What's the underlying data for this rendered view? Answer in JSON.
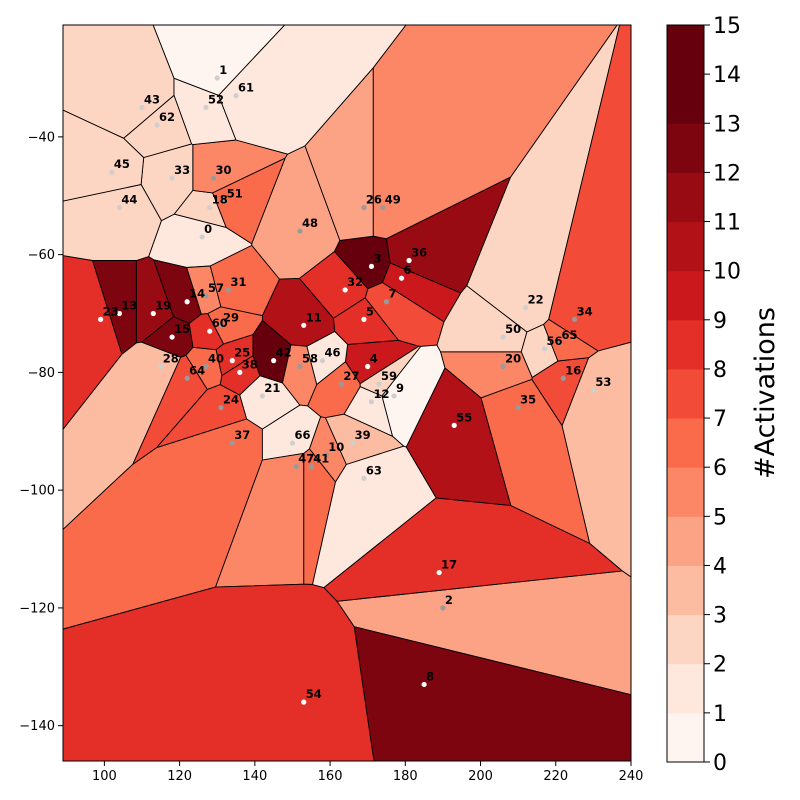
{
  "chart_data": {
    "type": "voronoi",
    "title": "",
    "xlabel": "",
    "ylabel": "",
    "xlim": [
      89,
      240
    ],
    "ylim": [
      -146,
      -21
    ],
    "xticks": [
      "100",
      "120",
      "140",
      "160",
      "180",
      "200",
      "220",
      "240"
    ],
    "yticks": [
      "−40",
      "−60",
      "−80",
      "−100",
      "−120",
      "−140"
    ],
    "colorbar": {
      "label": "#Activations",
      "min": 0,
      "max": 15,
      "ticks": [
        "0",
        "1",
        "2",
        "3",
        "4",
        "5",
        "6",
        "7",
        "8",
        "9",
        "10",
        "11",
        "12",
        "13",
        "14",
        "15"
      ],
      "cmap": "Reds"
    },
    "cells": [
      {
        "id": "0",
        "x": 126,
        "y": -57,
        "value": 1
      },
      {
        "id": "1",
        "x": 130,
        "y": -30,
        "value": 0
      },
      {
        "id": "2",
        "x": 190,
        "y": -120,
        "value": 4
      },
      {
        "id": "3",
        "x": 171,
        "y": -62,
        "value": 14
      },
      {
        "id": "4",
        "x": 170,
        "y": -79,
        "value": 9
      },
      {
        "id": "5",
        "x": 169,
        "y": -71,
        "value": 8
      },
      {
        "id": "6",
        "x": 179,
        "y": -64,
        "value": 9
      },
      {
        "id": "7",
        "x": 175,
        "y": -68,
        "value": 7
      },
      {
        "id": "8",
        "x": 185,
        "y": -133,
        "value": 12
      },
      {
        "id": "9",
        "x": 177,
        "y": -84,
        "value": 0
      },
      {
        "id": "10",
        "x": 159,
        "y": -94,
        "value": 5
      },
      {
        "id": "11",
        "x": 153,
        "y": -72,
        "value": 10
      },
      {
        "id": "12",
        "x": 171,
        "y": -85,
        "value": 1
      },
      {
        "id": "13",
        "x": 104,
        "y": -70,
        "value": 12
      },
      {
        "id": "14",
        "x": 122,
        "y": -68,
        "value": 12
      },
      {
        "id": "15",
        "x": 118,
        "y": -74,
        "value": 12
      },
      {
        "id": "16",
        "x": 222,
        "y": -81,
        "value": 7
      },
      {
        "id": "17",
        "x": 189,
        "y": -114,
        "value": 8
      },
      {
        "id": "18",
        "x": 128,
        "y": -52,
        "value": 2
      },
      {
        "id": "19",
        "x": 113,
        "y": -70,
        "value": 11
      },
      {
        "id": "20",
        "x": 206,
        "y": -79,
        "value": 5
      },
      {
        "id": "21",
        "x": 142,
        "y": -84,
        "value": 1
      },
      {
        "id": "22",
        "x": 212,
        "y": -69,
        "value": 2
      },
      {
        "id": "23",
        "x": 99,
        "y": -71,
        "value": 8
      },
      {
        "id": "24",
        "x": 131,
        "y": -86,
        "value": 7
      },
      {
        "id": "25",
        "x": 134,
        "y": -78,
        "value": 8
      },
      {
        "id": "26",
        "x": 169,
        "y": -52,
        "value": 4
      },
      {
        "id": "27",
        "x": 163,
        "y": -82,
        "value": 6
      },
      {
        "id": "28",
        "x": 115,
        "y": -79,
        "value": 3
      },
      {
        "id": "29",
        "x": 131,
        "y": -72,
        "value": 6
      },
      {
        "id": "30",
        "x": 129,
        "y": -47,
        "value": 5
      },
      {
        "id": "31",
        "x": 133,
        "y": -66,
        "value": 6
      },
      {
        "id": "32",
        "x": 164,
        "y": -66,
        "value": 8
      },
      {
        "id": "33",
        "x": 118,
        "y": -47,
        "value": 2
      },
      {
        "id": "34",
        "x": 225,
        "y": -71,
        "value": 7
      },
      {
        "id": "35",
        "x": 210,
        "y": -86,
        "value": 6
      },
      {
        "id": "36",
        "x": 181,
        "y": -61,
        "value": 11
      },
      {
        "id": "37",
        "x": 134,
        "y": -92,
        "value": 6
      },
      {
        "id": "38",
        "x": 136,
        "y": -80,
        "value": 8
      },
      {
        "id": "39",
        "x": 166,
        "y": -92,
        "value": 3
      },
      {
        "id": "40",
        "x": 127,
        "y": -79,
        "value": 6
      },
      {
        "id": "41",
        "x": 155,
        "y": -96,
        "value": 6
      },
      {
        "id": "42",
        "x": 145,
        "y": -78,
        "value": 14
      },
      {
        "id": "43",
        "x": 110,
        "y": -35,
        "value": 2
      },
      {
        "id": "44",
        "x": 104,
        "y": -52,
        "value": 2
      },
      {
        "id": "45",
        "x": 102,
        "y": -46,
        "value": 2
      },
      {
        "id": "46",
        "x": 158,
        "y": -78,
        "value": 1
      },
      {
        "id": "47",
        "x": 151,
        "y": -96,
        "value": 5
      },
      {
        "id": "48",
        "x": 152,
        "y": -56,
        "value": 4
      },
      {
        "id": "49",
        "x": 174,
        "y": -52,
        "value": 5
      },
      {
        "id": "50",
        "x": 206,
        "y": -74,
        "value": 2
      },
      {
        "id": "51",
        "x": 132,
        "y": -51,
        "value": 6
      },
      {
        "id": "52",
        "x": 127,
        "y": -35,
        "value": 1
      },
      {
        "id": "53",
        "x": 230,
        "y": -83,
        "value": 3
      },
      {
        "id": "54",
        "x": 153,
        "y": -136,
        "value": 8
      },
      {
        "id": "55",
        "x": 193,
        "y": -89,
        "value": 10
      },
      {
        "id": "56",
        "x": 217,
        "y": -76,
        "value": 2
      },
      {
        "id": "57",
        "x": 127,
        "y": -67,
        "value": 5
      },
      {
        "id": "58",
        "x": 152,
        "y": -79,
        "value": 5
      },
      {
        "id": "59",
        "x": 173,
        "y": -82,
        "value": 2
      },
      {
        "id": "60",
        "x": 128,
        "y": -73,
        "value": 8
      },
      {
        "id": "61",
        "x": 135,
        "y": -33,
        "value": 1
      },
      {
        "id": "62",
        "x": 114,
        "y": -38,
        "value": 2
      },
      {
        "id": "63",
        "x": 169,
        "y": -98,
        "value": 1
      },
      {
        "id": "64",
        "x": 122,
        "y": -81,
        "value": 7
      },
      {
        "id": "65",
        "x": 221,
        "y": -75,
        "value": 6
      },
      {
        "id": "66",
        "x": 150,
        "y": -92,
        "value": 1
      }
    ]
  }
}
